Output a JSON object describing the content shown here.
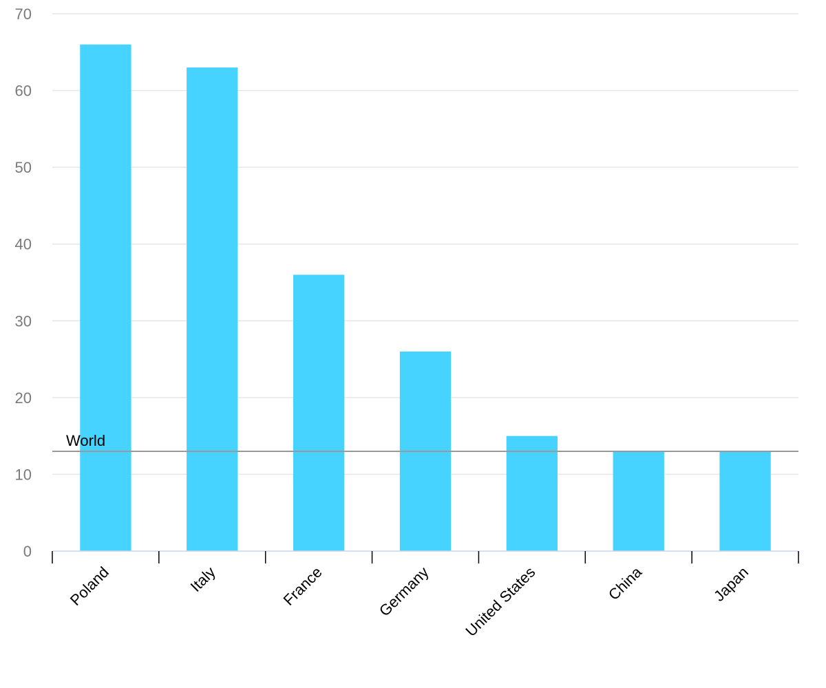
{
  "chart_data": {
    "type": "bar",
    "categories": [
      "Poland",
      "Italy",
      "France",
      "Germany",
      "United States",
      "China",
      "Japan"
    ],
    "values": [
      66,
      63,
      36,
      26,
      15,
      13,
      13
    ],
    "ylim": [
      0,
      70
    ],
    "yticks": [
      0,
      10,
      20,
      30,
      40,
      50,
      60,
      70
    ],
    "grid": true,
    "bar_color": "#47d3ff",
    "reference_line": {
      "label": "World",
      "value": 13,
      "color": "#999999"
    }
  }
}
